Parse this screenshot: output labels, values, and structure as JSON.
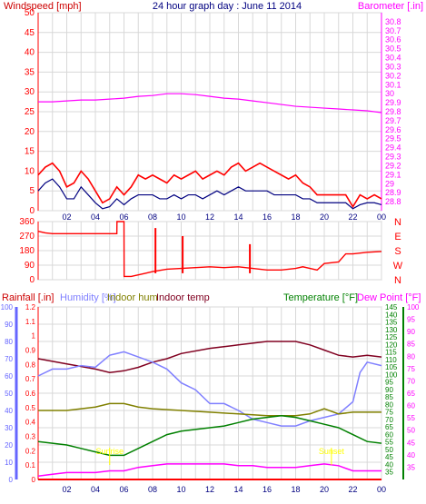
{
  "header": {
    "left_label": "Windspeed [mph]",
    "title": "24 hour graph day : June 11 2014",
    "right_label": "Barometer [.in]"
  },
  "colors": {
    "background": "#ffffff",
    "grid": "#d8d8d8",
    "red": "#ff0000",
    "darkred": "#cc0000",
    "navy": "#000080",
    "magenta": "#ff00ff",
    "blue_axis": "#6666ff",
    "lavender": "#8080ff",
    "olive": "#808000",
    "maroon": "#800020",
    "green": "#008000",
    "yellow": "#ffff00",
    "title": "#000080"
  },
  "x_ticks": [
    "02",
    "04",
    "06",
    "08",
    "10",
    "12",
    "14",
    "16",
    "18",
    "20",
    "22",
    "00"
  ],
  "chart_data": [
    {
      "id": "wind_baro",
      "type": "line",
      "x_unit": "hour",
      "xlim": [
        0,
        24
      ],
      "left_axis": {
        "label": "Windspeed [mph]",
        "ylim": [
          0,
          50
        ],
        "ticks": [
          0,
          5,
          10,
          15,
          20,
          25,
          30,
          35,
          40,
          45,
          50
        ]
      },
      "right_axis": {
        "label": "Barometer [.in]",
        "ylim": [
          28.7,
          30.9
        ],
        "ticks": [
          "28.8",
          "28.9",
          "29",
          "29.1",
          "29.2",
          "29.3",
          "29.4",
          "29.5",
          "29.6",
          "29.7",
          "29.8",
          "29.9",
          "30",
          "30.1",
          "30.2",
          "30.3",
          "30.4",
          "30.5",
          "30.6",
          "30.7",
          "30.8"
        ]
      },
      "series": [
        {
          "role": "wind_gust",
          "axis": "left",
          "color": "red",
          "x": [
            0,
            0.5,
            1,
            1.5,
            2,
            2.5,
            3,
            3.5,
            4,
            4.5,
            5,
            5.5,
            6,
            6.5,
            7,
            7.5,
            8,
            8.5,
            9,
            9.5,
            10,
            10.5,
            11,
            11.5,
            12,
            12.5,
            13,
            13.5,
            14,
            14.5,
            15,
            15.5,
            16,
            16.5,
            17,
            17.5,
            18,
            18.5,
            19,
            19.5,
            20,
            20.5,
            21,
            21.5,
            22,
            22.5,
            23,
            23.5,
            24
          ],
          "values": [
            9,
            11,
            12,
            10,
            6,
            7,
            10,
            8,
            5,
            2,
            3,
            6,
            4,
            6,
            9,
            8,
            9,
            8,
            7,
            9,
            8,
            9,
            10,
            8,
            9,
            10,
            9,
            11,
            12,
            10,
            11,
            12,
            11,
            10,
            9,
            8,
            9,
            7,
            6,
            4,
            4,
            4,
            4,
            4,
            1,
            4,
            3,
            4,
            3
          ]
        },
        {
          "role": "wind_average",
          "axis": "left",
          "color": "navy",
          "x": [
            0,
            0.5,
            1,
            1.5,
            2,
            2.5,
            3,
            3.5,
            4,
            4.5,
            5,
            5.5,
            6,
            6.5,
            7,
            7.5,
            8,
            8.5,
            9,
            9.5,
            10,
            10.5,
            11,
            11.5,
            12,
            12.5,
            13,
            13.5,
            14,
            14.5,
            15,
            15.5,
            16,
            16.5,
            17,
            17.5,
            18,
            18.5,
            19,
            19.5,
            20,
            20.5,
            21,
            21.5,
            22,
            22.5,
            23,
            23.5,
            24
          ],
          "values": [
            5,
            7,
            8,
            6,
            3,
            3,
            6,
            4,
            2,
            0.5,
            1,
            3,
            1.5,
            3,
            4,
            4,
            4,
            3,
            3,
            4,
            3,
            4,
            4,
            3,
            4,
            5,
            4,
            5,
            6,
            5,
            5,
            5,
            5,
            4,
            4,
            4,
            4,
            3,
            3,
            2,
            2,
            2,
            2,
            2,
            0.5,
            1.5,
            2,
            2,
            1.5
          ]
        },
        {
          "role": "barometer",
          "axis": "right",
          "color": "magenta",
          "x": [
            0,
            1,
            2,
            3,
            4,
            5,
            6,
            7,
            8,
            9,
            10,
            11,
            12,
            13,
            14,
            15,
            16,
            17,
            18,
            19,
            20,
            21,
            22,
            23,
            24
          ],
          "values": [
            29.91,
            29.91,
            29.92,
            29.93,
            29.93,
            29.94,
            29.95,
            29.97,
            29.98,
            30.0,
            30.0,
            29.99,
            29.97,
            29.95,
            29.94,
            29.92,
            29.9,
            29.88,
            29.86,
            29.85,
            29.84,
            29.83,
            29.82,
            29.81,
            29.79
          ]
        }
      ]
    },
    {
      "id": "wind_direction",
      "type": "line",
      "x_unit": "hour",
      "xlim": [
        0,
        24
      ],
      "left_axis": {
        "ylim": [
          0,
          360
        ],
        "ticks": [
          0,
          90,
          180,
          270,
          360
        ]
      },
      "right_axis": {
        "labels": [
          "N",
          "W",
          "S",
          "E",
          "N"
        ]
      },
      "series": [
        {
          "role": "direction",
          "color": "red",
          "x": [
            0,
            0.5,
            1,
            2,
            3,
            4,
            5,
            5.5,
            5.51,
            6,
            6.01,
            6.5,
            7,
            7.5,
            8,
            9,
            10,
            11,
            12,
            13,
            14,
            15,
            16,
            17,
            18,
            18.5,
            19,
            19.5,
            20,
            21,
            21.5,
            22,
            23,
            24
          ],
          "values": [
            300,
            290,
            285,
            285,
            285,
            285,
            285,
            285,
            360,
            360,
            20,
            20,
            30,
            40,
            50,
            65,
            70,
            75,
            80,
            75,
            80,
            70,
            60,
            60,
            70,
            80,
            70,
            60,
            100,
            110,
            160,
            160,
            170,
            175
          ]
        }
      ]
    },
    {
      "id": "rain_hum_temp",
      "type": "line",
      "x_unit": "hour",
      "xlim": [
        0,
        24
      ],
      "labels": {
        "rainfall": "Rainfall [.in]",
        "humidity": "Humidity [%]",
        "indoor_hum": "Indoor hum",
        "indoor_temp": "Indoor temp",
        "temperature": "Temperature [°F]",
        "dew_point": "Dew Point [°F]"
      },
      "axes": {
        "humidity": {
          "ylim": [
            0,
            100
          ],
          "ticks": [
            0,
            10,
            20,
            30,
            40,
            50,
            60,
            70,
            80,
            90,
            100
          ]
        },
        "rainfall": {
          "ylim": [
            0,
            1.2
          ],
          "ticks": [
            "0",
            "0.1",
            "0.2",
            "0.3",
            "0.4",
            "0.5",
            "0.6",
            "0.7",
            "0.8",
            "0.9",
            "1",
            "1.1",
            "1.2"
          ]
        },
        "temperature": {
          "ylim": [
            30,
            145
          ],
          "ticks": [
            35,
            40,
            45,
            50,
            55,
            60,
            65,
            70,
            75,
            80,
            85,
            90,
            95,
            100,
            105,
            110,
            115,
            120,
            125,
            130,
            135,
            140,
            145
          ]
        },
        "dew_point": {
          "ylim": [
            30,
            100
          ],
          "ticks": [
            35,
            40,
            45,
            50,
            55,
            60,
            65,
            70,
            75,
            80,
            85,
            90,
            95,
            100
          ]
        }
      },
      "annotations": [
        {
          "text": "Sunrise",
          "x": 5.0
        },
        {
          "text": "Sunset",
          "x": 20.5
        }
      ],
      "series": [
        {
          "role": "indoor_temp",
          "axis": "humidity",
          "color": "maroon",
          "x": [
            0,
            2,
            4,
            5,
            6,
            7,
            8,
            9,
            10,
            12,
            14,
            16,
            18,
            19,
            20,
            21,
            22,
            23,
            24
          ],
          "values": [
            70,
            67,
            64,
            62,
            63,
            65,
            68,
            70,
            73,
            76,
            78,
            80,
            80,
            78,
            75,
            72,
            71,
            72,
            71
          ]
        },
        {
          "role": "humidity",
          "axis": "humidity",
          "color": "lavender",
          "x": [
            0,
            1,
            2,
            3,
            4,
            5,
            6,
            7,
            8,
            9,
            10,
            11,
            12,
            13,
            14,
            15,
            16,
            17,
            18,
            19,
            20,
            21,
            22,
            22.5,
            23,
            24
          ],
          "values": [
            60,
            64,
            64,
            66,
            65,
            72,
            74,
            71,
            68,
            64,
            56,
            52,
            44,
            44,
            40,
            35,
            33,
            31,
            31,
            34,
            36,
            38,
            45,
            62,
            68,
            66
          ]
        },
        {
          "role": "indoor_hum",
          "axis": "humidity",
          "color": "olive",
          "x": [
            0,
            2,
            4,
            5,
            6,
            7,
            8,
            10,
            12,
            14,
            16,
            18,
            19,
            20,
            21,
            22,
            23,
            24
          ],
          "values": [
            40,
            40,
            42,
            44,
            44,
            42,
            41,
            40,
            39,
            38,
            37,
            37,
            38,
            41,
            38,
            39,
            39,
            39
          ]
        },
        {
          "role": "temperature",
          "axis": "humidity",
          "color": "green",
          "x": [
            0,
            1,
            2,
            3,
            4,
            5,
            6,
            7,
            8,
            9,
            10,
            11,
            12,
            13,
            14,
            15,
            16,
            17,
            18,
            19,
            20,
            21,
            22,
            23,
            24
          ],
          "values": [
            22,
            21,
            20,
            18,
            16,
            14,
            14,
            18,
            22,
            26,
            28,
            29,
            30,
            31,
            33,
            35,
            36,
            37,
            36,
            34,
            32,
            30,
            26,
            22,
            21
          ]
        },
        {
          "role": "dew_point",
          "axis": "humidity",
          "color": "magenta",
          "x": [
            0,
            1,
            2,
            3,
            4,
            5,
            6,
            7,
            8,
            9,
            10,
            11,
            12,
            13,
            14,
            15,
            16,
            17,
            18,
            19,
            20,
            21,
            22,
            23,
            24
          ],
          "values": [
            2,
            3,
            4,
            4,
            4,
            5,
            5,
            7,
            8,
            9,
            9,
            9,
            9,
            9,
            8,
            8,
            7,
            7,
            7,
            8,
            9,
            8,
            5,
            5,
            5
          ]
        },
        {
          "role": "rainfall",
          "axis": "rainfall",
          "color": "red",
          "x": [
            0,
            24
          ],
          "values": [
            0,
            0
          ]
        }
      ]
    }
  ]
}
